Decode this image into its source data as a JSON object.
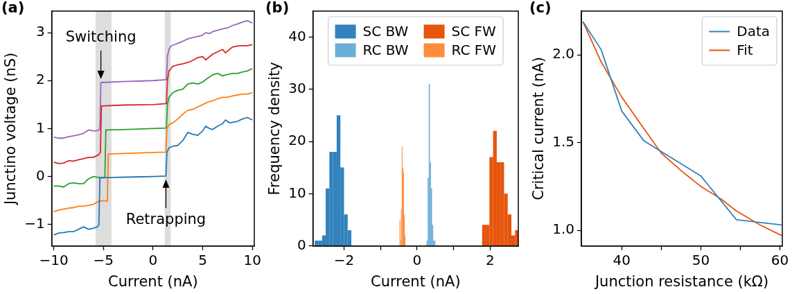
{
  "chart_data": [
    {
      "type": "line",
      "title": "(a)",
      "xlabel": "Current (nA)",
      "ylabel": "Junctino voltage (nS)",
      "xlim": [
        -10.2,
        10.2
      ],
      "ylim": [
        -1.45,
        3.45
      ],
      "xticks": [
        -10,
        -5,
        0,
        5,
        10
      ],
      "yticks": [
        -1,
        0,
        1,
        2,
        3
      ],
      "bands": [
        {
          "axis": "x",
          "from": -5.78,
          "to": -4.18,
          "color": "#dddddd"
        },
        {
          "axis": "x",
          "from": 1.18,
          "to": 1.78,
          "color": "#dddddd"
        }
      ],
      "annotations": [
        {
          "text": "Switching",
          "x": -5.25,
          "y": 1.96
        },
        {
          "text": "Retrapping",
          "x": 1.3,
          "y": 0.01
        }
      ],
      "series": [
        {
          "color": "#1f77b4",
          "x": [
            -10,
            -9.5,
            -9,
            -8.5,
            -8,
            -7.5,
            -7,
            -6.5,
            -6,
            -5.6,
            -5.45,
            -5.35,
            -4,
            -2,
            0,
            1.3,
            1.4,
            1.6,
            2,
            2.5,
            3,
            3.5,
            4,
            4.5,
            5,
            5.3,
            5.7,
            6,
            6.5,
            7,
            7.3,
            7.7,
            8,
            8.5,
            9,
            9.5,
            10
          ],
          "values": [
            -1.22,
            -1.18,
            -1.17,
            -1.15,
            -1.15,
            -1.1,
            -1.05,
            -1.1,
            -1.08,
            -1.05,
            -1.0,
            -0.03,
            -0.02,
            -0.01,
            0,
            0.01,
            0.5,
            0.6,
            0.63,
            0.65,
            0.75,
            0.92,
            0.88,
            0.86,
            0.95,
            1.05,
            1.0,
            0.98,
            1.05,
            1.1,
            1.18,
            1.12,
            1.13,
            1.15,
            1.2,
            1.23,
            1.18
          ]
        },
        {
          "color": "#ff7f0e",
          "x": [
            -10,
            -9.5,
            -9,
            -8.5,
            -8,
            -7.5,
            -7,
            -6.5,
            -6,
            -5.5,
            -5,
            -4.6,
            -4.5,
            -3,
            0,
            1.3,
            1.4,
            1.6,
            2,
            2.5,
            3,
            3.5,
            4,
            4.5,
            5,
            5.5,
            6,
            6.5,
            7,
            7.5,
            8,
            8.5,
            9,
            9.5,
            10
          ],
          "values": [
            -0.73,
            -0.7,
            -0.68,
            -0.66,
            -0.65,
            -0.62,
            -0.62,
            -0.6,
            -0.58,
            -0.52,
            -0.5,
            -0.52,
            0.47,
            0.48,
            0.5,
            0.51,
            1.0,
            1.08,
            1.12,
            1.2,
            1.3,
            1.38,
            1.4,
            1.45,
            1.5,
            1.55,
            1.58,
            1.62,
            1.65,
            1.65,
            1.68,
            1.7,
            1.72,
            1.72,
            1.75
          ]
        },
        {
          "color": "#2ca02c",
          "x": [
            -10,
            -9.5,
            -9,
            -8.5,
            -8,
            -7.5,
            -7,
            -6.5,
            -6,
            -5.5,
            -5,
            -4.85,
            -4.75,
            -3,
            0,
            1.35,
            1.45,
            1.6,
            2,
            2.5,
            3,
            3.5,
            4,
            4.5,
            5,
            5.5,
            6,
            6.5,
            7,
            7.5,
            8,
            8.5,
            9,
            9.5,
            10
          ],
          "values": [
            -0.2,
            -0.2,
            -0.22,
            -0.15,
            -0.13,
            -0.15,
            -0.15,
            -0.05,
            0.0,
            -0.02,
            -0.02,
            -0.02,
            0.97,
            0.98,
            1.0,
            1.01,
            1.5,
            1.65,
            1.75,
            1.8,
            1.82,
            1.93,
            1.95,
            1.93,
            1.97,
            2.05,
            2.12,
            2.15,
            2.1,
            2.13,
            2.15,
            2.15,
            2.18,
            2.2,
            2.25
          ]
        },
        {
          "color": "#d62728",
          "x": [
            -10,
            -9.5,
            -9,
            -8.5,
            -8,
            -7.5,
            -7,
            -6.5,
            -6,
            -5.5,
            -5.3,
            -5.2,
            -3,
            0,
            1.35,
            1.45,
            1.6,
            2,
            2.5,
            3,
            3.5,
            4,
            4.5,
            5,
            5.3,
            5.7,
            6,
            6.5,
            7,
            7.3,
            7.7,
            8,
            8.5,
            9,
            9.5,
            10
          ],
          "values": [
            0.3,
            0.27,
            0.28,
            0.33,
            0.32,
            0.35,
            0.37,
            0.4,
            0.4,
            0.45,
            0.5,
            1.47,
            1.49,
            1.5,
            1.52,
            2.0,
            2.2,
            2.3,
            2.33,
            2.35,
            2.38,
            2.42,
            2.48,
            2.5,
            2.43,
            2.5,
            2.55,
            2.6,
            2.65,
            2.58,
            2.65,
            2.7,
            2.72,
            2.73,
            2.73,
            2.75
          ]
        },
        {
          "color": "#9467bd",
          "x": [
            -10,
            -9.5,
            -9,
            -8.5,
            -8,
            -7.5,
            -7,
            -6.5,
            -6,
            -5.5,
            -5.35,
            -5.25,
            -3,
            0,
            1.35,
            1.45,
            1.6,
            1.8,
            2.5,
            3,
            3.5,
            4,
            4.5,
            5,
            5.3,
            5.7,
            6,
            6.5,
            7,
            7.5,
            8,
            8.5,
            9,
            9.5,
            10
          ],
          "values": [
            0.82,
            0.8,
            0.8,
            0.83,
            0.85,
            0.87,
            0.9,
            0.97,
            0.95,
            0.96,
            1.0,
            1.96,
            1.98,
            2.0,
            2.02,
            2.5,
            2.65,
            2.72,
            2.78,
            2.82,
            2.87,
            2.9,
            2.92,
            2.95,
            3.0,
            2.98,
            3.02,
            3.05,
            3.08,
            3.1,
            3.15,
            3.18,
            3.22,
            3.25,
            3.2
          ]
        }
      ]
    },
    {
      "type": "bar",
      "title": "(b)",
      "xlabel": "Current (nA)",
      "ylabel": "Frequency density",
      "xlim": [
        -2.85,
        2.77
      ],
      "ylim": [
        0,
        45
      ],
      "xticks": [
        -2,
        {
          "value": -1,
          "label": null
        },
        0,
        {
          "value": 1,
          "label": null
        },
        2
      ],
      "yticks": [
        0,
        10,
        20,
        30,
        40
      ],
      "legend": "top",
      "series": [
        {
          "name": "SC BW",
          "color": "#3182bd",
          "x": [
            -2.75,
            -2.65,
            -2.55,
            -2.45,
            -2.35,
            -2.25,
            -2.15,
            -2.05,
            -1.95,
            -1.85
          ],
          "values": [
            1,
            1,
            2,
            11,
            18,
            18,
            25,
            15,
            6,
            3
          ]
        },
        {
          "name": "RC BW",
          "color": "#6baed6",
          "x": [
            0.275,
            0.305,
            0.335,
            0.365,
            0.395,
            0.425,
            0.455,
            0.485
          ],
          "values": [
            1,
            13,
            31,
            16,
            11,
            4,
            1,
            1
          ]
        },
        {
          "name": "SC FW",
          "color": "#e6550d",
          "x": [
            1.83,
            1.93,
            2.03,
            2.13,
            2.23,
            2.33,
            2.43,
            2.53,
            2.63,
            2.73
          ],
          "values": [
            4,
            4,
            17,
            22,
            16,
            16,
            10,
            6,
            2,
            3
          ]
        },
        {
          "name": "RC FW",
          "color": "#fd8d3c",
          "x": [
            -0.47,
            -0.45,
            -0.43,
            -0.41,
            -0.39,
            -0.37,
            -0.35,
            -0.33
          ],
          "values": [
            5,
            1,
            7,
            19,
            15,
            14,
            6,
            2
          ]
        }
      ]
    },
    {
      "type": "line",
      "title": "(c)",
      "xlabel": "Junction resistance (kΩ)",
      "ylabel": "Critical current (nA)",
      "xlim": [
        34.9,
        60.3
      ],
      "ylim": [
        0.91,
        2.25
      ],
      "xticks": [
        40,
        {
          "value": 45,
          "label": null
        },
        50,
        {
          "value": 55,
          "label": null
        },
        60
      ],
      "yticks": [
        {
          "value": 1,
          "label": "1.0"
        },
        {
          "value": 1.5,
          "label": "1.5"
        },
        {
          "value": 2,
          "label": "2.0"
        }
      ],
      "legend": "top right",
      "series": [
        {
          "name": "Data",
          "color": "#3182bd",
          "x": [
            35.1,
            37.4,
            40.0,
            42.8,
            50.0,
            54.5,
            60.2
          ],
          "values": [
            2.19,
            2.03,
            1.68,
            1.51,
            1.31,
            1.06,
            1.03
          ]
        },
        {
          "name": "Fit",
          "color": "#e6550d",
          "x": [
            35.1,
            37.4,
            40.0,
            42.8,
            45,
            47.5,
            50,
            52.5,
            54.5,
            57.5,
            60.2
          ],
          "values": [
            2.19,
            1.96,
            1.76,
            1.58,
            1.44,
            1.34,
            1.25,
            1.18,
            1.11,
            1.03,
            0.97
          ]
        }
      ]
    }
  ]
}
